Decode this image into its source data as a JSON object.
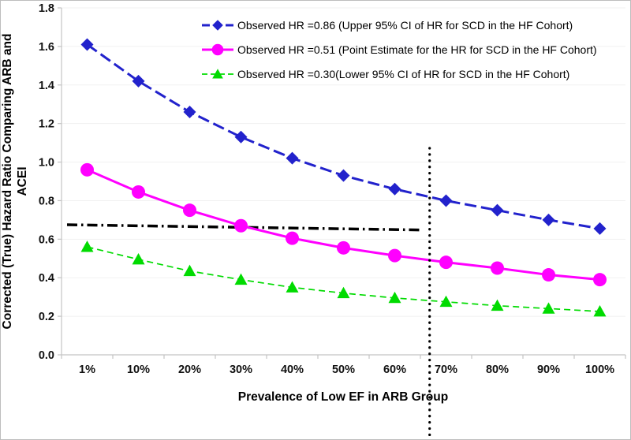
{
  "chart_data": {
    "type": "line",
    "title": "",
    "xlabel": "Prevalence of Low EF in ARB Group",
    "ylabel_line1": "Corrected (True) Hazard Ratio Comparing ARB and",
    "ylabel_line2": "ACEI",
    "categories": [
      "1%",
      "10%",
      "20%",
      "30%",
      "40%",
      "50%",
      "60%",
      "70%",
      "80%",
      "90%",
      "100%"
    ],
    "y_ticks": [
      "0.0",
      "0.2",
      "0.4",
      "0.6",
      "0.8",
      "1.0",
      "1.2",
      "1.4",
      "1.6",
      "1.8"
    ],
    "ylim": [
      0,
      1.8
    ],
    "grid": "faint-horizontal",
    "legend_position": "top-right-inside",
    "series": [
      {
        "id": "upper-ci",
        "name": "Observed HR =0.86 (Upper 95% CI of HR for SCD in the HF Cohort)",
        "observed_hr": 0.86,
        "color": "#2222cc",
        "marker": "diamond",
        "line_style": "dashed",
        "values": [
          1.61,
          1.42,
          1.26,
          1.13,
          1.02,
          0.93,
          0.86,
          0.8,
          0.75,
          0.7,
          0.655
        ]
      },
      {
        "id": "point-estimate",
        "name": "Observed HR =0.51 (Point Estimate for the HR for SCD in the HF Cohort)",
        "observed_hr": 0.51,
        "color": "#ff00ff",
        "marker": "circle",
        "line_style": "solid",
        "values": [
          0.96,
          0.845,
          0.75,
          0.67,
          0.605,
          0.555,
          0.515,
          0.48,
          0.45,
          0.415,
          0.39
        ]
      },
      {
        "id": "lower-ci",
        "name": "Observed HR =0.30(Lower 95% CI of HR for SCD in the HF Cohort)",
        "observed_hr": 0.3,
        "color": "#00db00",
        "marker": "triangle",
        "line_style": "dashed-thin",
        "values": [
          0.56,
          0.495,
          0.435,
          0.39,
          0.35,
          0.32,
          0.295,
          0.275,
          0.255,
          0.24,
          0.225
        ]
      }
    ],
    "reference_lines": {
      "horizontal_dashdot": {
        "description": "black dash-dot line from left edge to the vertical dotted line",
        "hr_start": 0.675,
        "hr_end": 0.648,
        "color": "#000000",
        "style": "dash-dot"
      },
      "vertical_dotted": {
        "description": "black vertical dotted line between 60% and 70%, extending below the x axis",
        "prevalence_percent": 66.8,
        "hr_top": 1.072,
        "color": "#000000",
        "style": "dotted"
      }
    },
    "colors": {
      "axis": "#c4c4c4",
      "grid": "#f1f1f1",
      "tick_label": "#111111"
    }
  }
}
